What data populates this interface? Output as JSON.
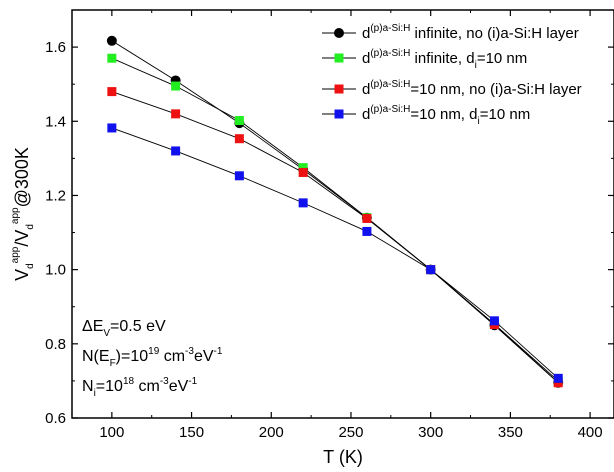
{
  "chart_data": {
    "type": "line",
    "xlabel": "T (K)",
    "ylabel": {
      "v1": "V",
      "sub1": "d",
      "sup1": "app",
      "slash": "/V",
      "sub2": "d",
      "sup2": "app",
      "rest": "@300K"
    },
    "xlim": [
      75,
      415
    ],
    "ylim": [
      0.6,
      1.7
    ],
    "xticks": [
      100,
      150,
      200,
      250,
      300,
      350,
      400
    ],
    "yticks": [
      0.6,
      0.8,
      1.0,
      1.2,
      1.4,
      1.6
    ],
    "ytick_labels": [
      "0.6",
      "0.8",
      "1.0",
      "1.2",
      "1.4",
      "1.6"
    ],
    "grid": false,
    "legend_position": "top-right",
    "x": [
      100,
      140,
      180,
      220,
      260,
      300,
      340,
      380
    ],
    "series": [
      {
        "legend": {
          "d": "d",
          "sup": "(p)a-Si:H",
          "pre_sub": " infinite, no (i)a-Si:H layer",
          "sub": "",
          "post_sub": ""
        },
        "color": "#000000",
        "marker": "circle",
        "values": [
          1.617,
          1.51,
          1.395,
          1.27,
          1.14,
          1.0,
          0.85,
          0.695
        ]
      },
      {
        "legend": {
          "d": "d",
          "sup": "(p)a-Si:H",
          "pre_sub": " infinite, d",
          "sub": "i",
          "post_sub": "=10 nm"
        },
        "color": "#22ee22",
        "marker": "square",
        "values": [
          1.57,
          1.495,
          1.402,
          1.275,
          1.14,
          1.0,
          0.853,
          0.7
        ]
      },
      {
        "legend": {
          "d": "d",
          "sup": "(p)a-Si:H",
          "pre_sub": "=10 nm, no (i)a-Si:H layer",
          "sub": "",
          "post_sub": ""
        },
        "color": "#ee1111",
        "marker": "square",
        "values": [
          1.48,
          1.42,
          1.353,
          1.262,
          1.138,
          1.0,
          0.852,
          0.695
        ]
      },
      {
        "legend": {
          "d": "d",
          "sup": "(p)a-Si:H",
          "pre_sub": "=10 nm, d",
          "sub": "i",
          "post_sub": "=10 nm"
        },
        "color": "#1111ee",
        "marker": "square",
        "values": [
          1.382,
          1.32,
          1.253,
          1.18,
          1.103,
          1.0,
          0.862,
          0.707
        ]
      }
    ],
    "annotations": [
      {
        "pre": "ΔE",
        "sub": "V",
        "post": "=0.5 eV",
        "sup": "",
        "post2": "",
        "sup2": ""
      },
      {
        "pre": "N(E",
        "sub": "F",
        "post": ")=10",
        "sup": "19",
        "post2": " cm",
        "sup2": "-3",
        "post3": "eV",
        "sup3": "-1"
      },
      {
        "pre": "N",
        "sub": "i",
        "post": "=10",
        "sup": "18",
        "post2": "  cm",
        "sup2": "-3",
        "post3": "eV",
        "sup3": "-1"
      }
    ]
  }
}
